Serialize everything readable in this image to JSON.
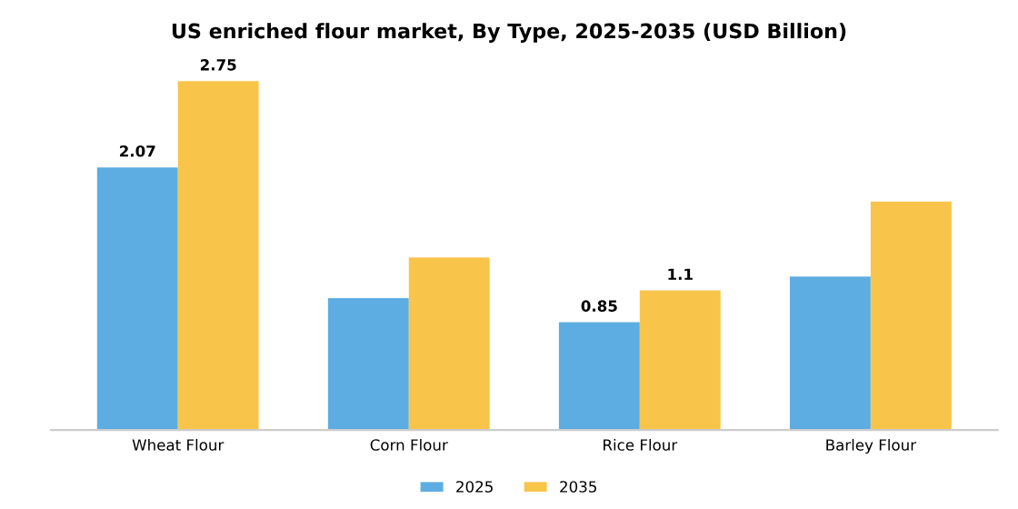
{
  "chart_data": {
    "type": "bar",
    "title": "US enriched flour market, By Type, 2025-2035 (USD Billion)",
    "categories": [
      "Wheat Flour",
      "Corn Flour",
      "Rice Flour",
      "Barley Flour"
    ],
    "series": [
      {
        "name": "2025",
        "color": "#5dade2",
        "values": [
          2.07,
          1.04,
          0.85,
          1.21
        ],
        "value_labels": [
          "2.07",
          null,
          "0.85",
          null
        ]
      },
      {
        "name": "2035",
        "color": "#f8c54a",
        "values": [
          2.75,
          1.36,
          1.1,
          1.8
        ],
        "value_labels": [
          "2.75",
          null,
          "1.1",
          null
        ]
      }
    ],
    "legend": "bottom",
    "grid": false,
    "tick_labels": "x"
  }
}
